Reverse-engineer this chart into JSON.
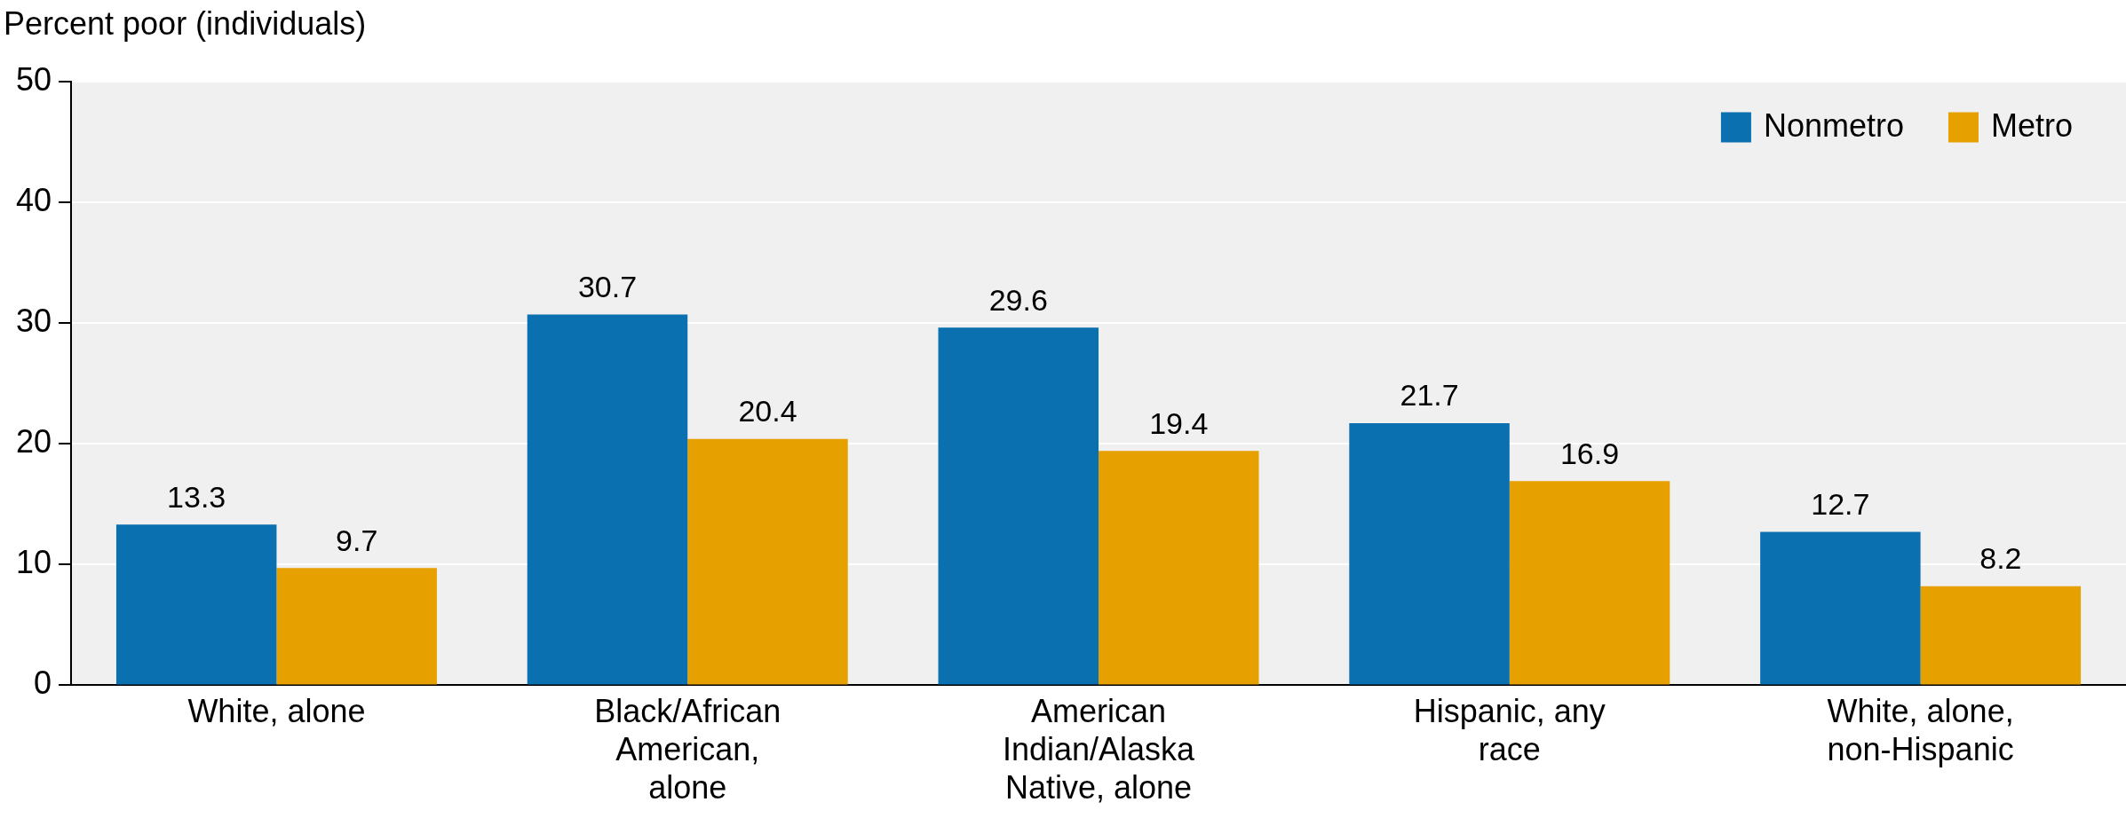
{
  "chart_data": {
    "type": "bar",
    "ylabel": "Percent poor (individuals)",
    "categories": [
      "White, alone",
      "Black/African American, alone",
      "American Indian/Alaska Native, alone",
      "Hispanic, any race",
      "White, alone, non-Hispanic"
    ],
    "series": [
      {
        "name": "Nonmetro",
        "color": "#0a70b0",
        "values": [
          13.3,
          30.7,
          29.6,
          21.7,
          12.7
        ]
      },
      {
        "name": "Metro",
        "color": "#e6a000",
        "values": [
          9.7,
          20.4,
          19.4,
          16.9,
          8.2
        ]
      }
    ],
    "ylim": [
      0,
      50
    ],
    "yticks": [
      0,
      10,
      20,
      30,
      40,
      50
    ],
    "grid": "y",
    "legend": "top right",
    "data_labels": true
  }
}
